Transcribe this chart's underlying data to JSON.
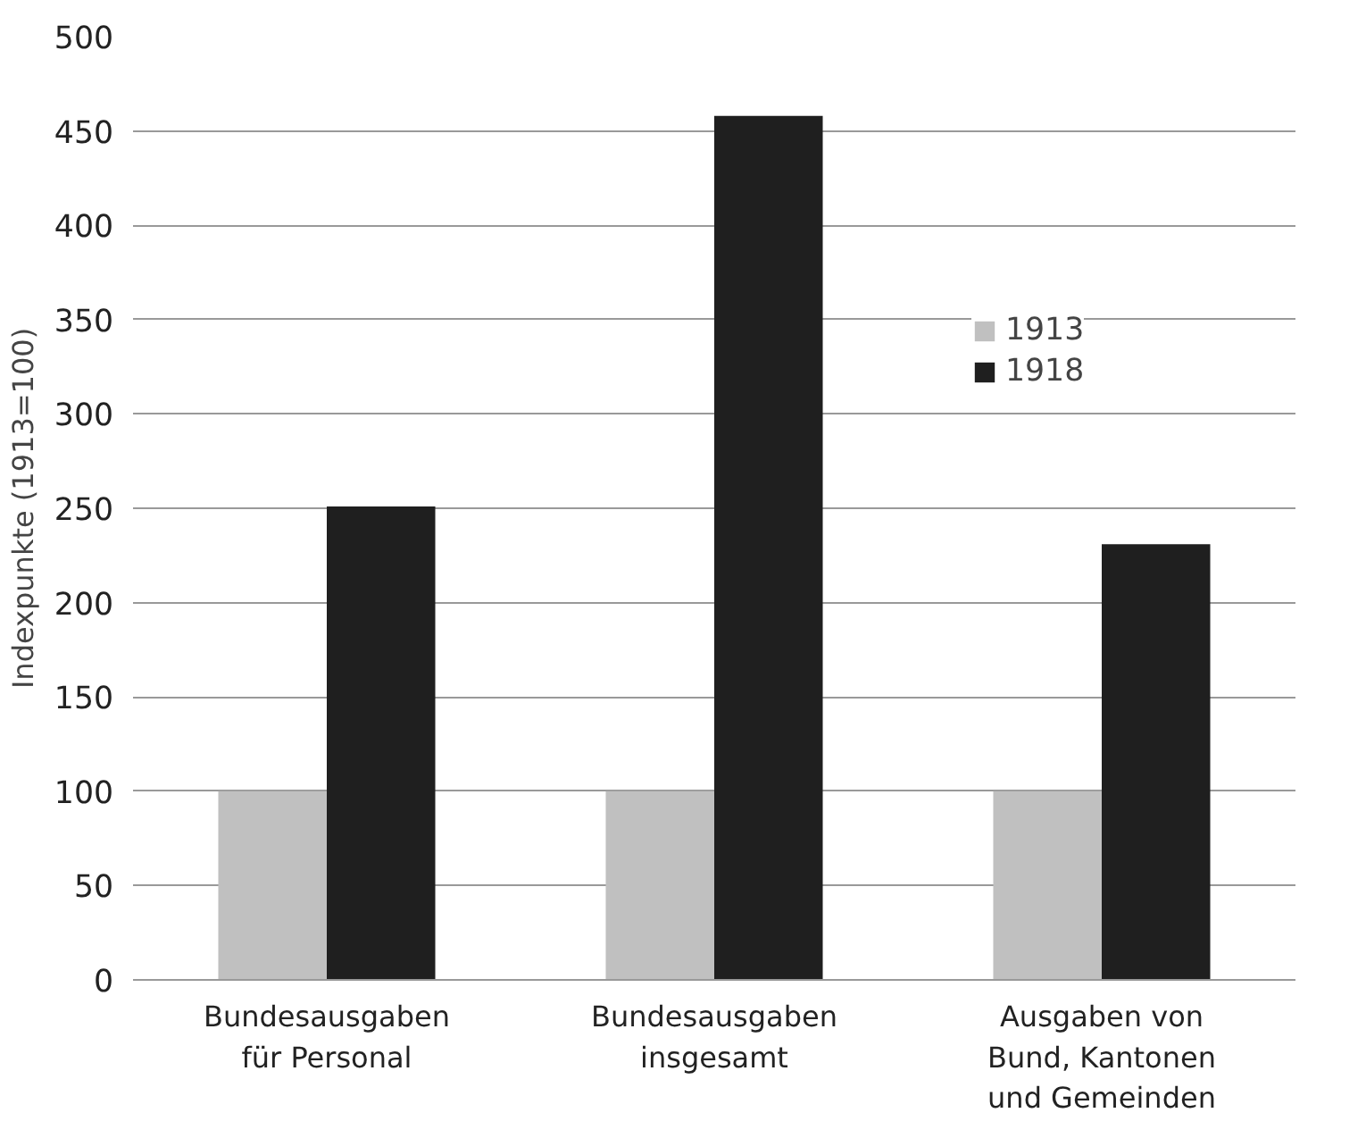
{
  "chart_data": {
    "type": "bar",
    "ylabel": "Indexpunkte (1913=100)",
    "categories": [
      "Bundesausgaben für Personal",
      "Bundesausgaben insgesamt",
      "Ausgaben von Bund, Kantonen und Gemeinden"
    ],
    "series": [
      {
        "name": "1913",
        "color": "#c0c0c0",
        "values": [
          100,
          100,
          100
        ]
      },
      {
        "name": "1918",
        "color": "#1f1f1f",
        "values": [
          251,
          458,
          231
        ]
      }
    ],
    "ylim": [
      0,
      500
    ],
    "yticks": [
      0,
      50,
      100,
      150,
      200,
      250,
      300,
      350,
      400,
      450,
      500
    ],
    "grid": "y",
    "legend": "top right"
  }
}
